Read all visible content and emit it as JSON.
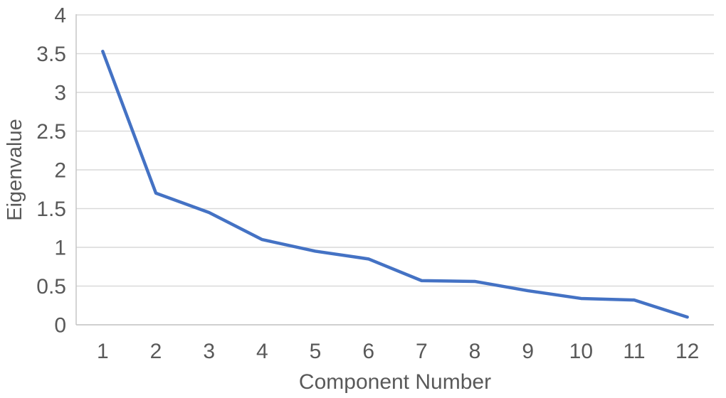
{
  "chart_data": {
    "type": "line",
    "title": "",
    "xlabel": "Component Number",
    "ylabel": "Eigenvalue",
    "categories": [
      "1",
      "2",
      "3",
      "4",
      "5",
      "6",
      "7",
      "8",
      "9",
      "10",
      "11",
      "12"
    ],
    "series": [
      {
        "name": "Eigenvalue",
        "values": [
          3.53,
          1.7,
          1.45,
          1.1,
          0.95,
          0.85,
          0.57,
          0.56,
          0.44,
          0.34,
          0.32,
          0.1
        ]
      }
    ],
    "ylim": [
      0,
      4
    ],
    "ytick_step": 0.5,
    "ytick_labels": [
      "0",
      "0.5",
      "1",
      "1.5",
      "2",
      "2.5",
      "3",
      "3.5",
      "4"
    ],
    "grid": "horizontal",
    "legend": "none",
    "colors": {
      "line": "#4472C4",
      "gridline": "#D9D9D9",
      "axis_line": "#C6C6C6",
      "text": "#595959",
      "background": "#FFFFFF"
    }
  }
}
